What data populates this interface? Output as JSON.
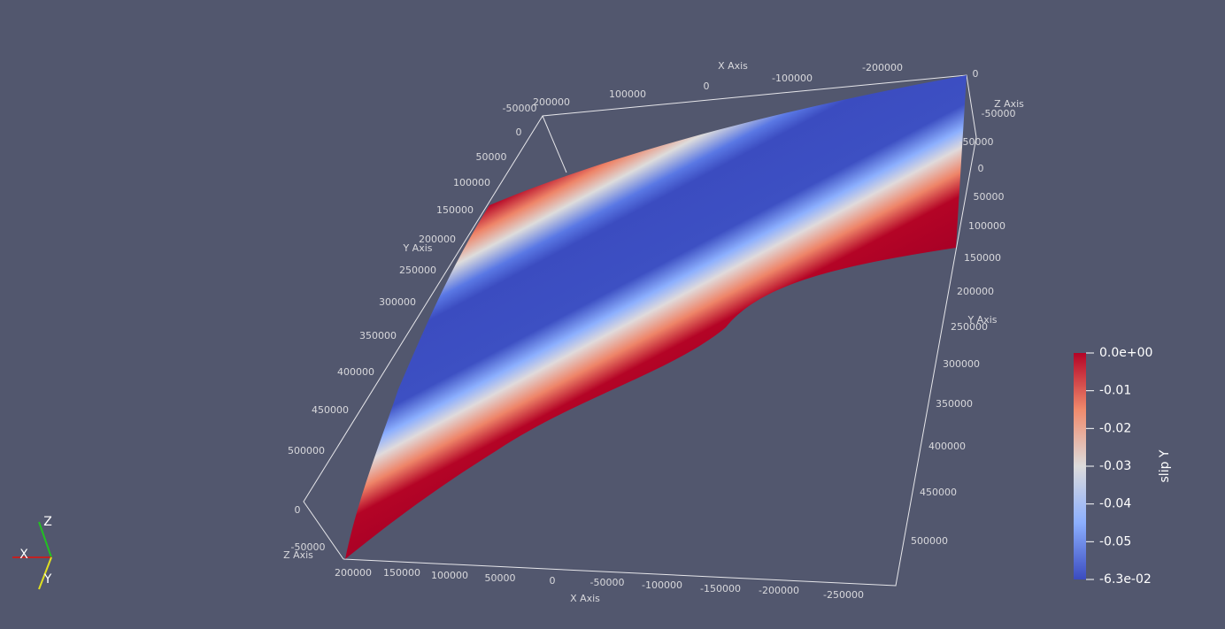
{
  "render_view": {
    "top_x_axis": {
      "title": "X Axis",
      "ticks": [
        "200000",
        "100000",
        "0",
        "-100000",
        "-200000"
      ]
    },
    "top_z_axis": {
      "title": "Z Axis",
      "ticks": [
        "0",
        "-50000"
      ]
    },
    "right_y_axis": {
      "title": "Y Axis",
      "ticks": [
        "-50000",
        "0",
        "50000",
        "100000",
        "150000",
        "200000",
        "250000",
        "300000",
        "350000",
        "400000",
        "450000",
        "500000"
      ]
    },
    "left_y_axis": {
      "title": "Y Axis",
      "ticks": [
        "-50000",
        "0",
        "50000",
        "100000",
        "150000",
        "200000",
        "250000",
        "300000",
        "350000",
        "400000",
        "450000",
        "500000"
      ]
    },
    "left_z_axis": {
      "title": "Z Axis",
      "ticks": [
        "0",
        "-50000"
      ]
    },
    "bottom_x_axis": {
      "title": "X Axis",
      "ticks": [
        "200000",
        "150000",
        "100000",
        "50000",
        "0",
        "-50000",
        "-100000",
        "-150000",
        "-200000",
        "-250000"
      ]
    },
    "color_bar": {
      "title": "slip Y",
      "labels": [
        "0.0e+00",
        "-0.01",
        "-0.02",
        "-0.03",
        "-0.04",
        "-0.05",
        "-6.3e-02"
      ]
    },
    "orientation_axes": {
      "x": "X",
      "y": "Y",
      "z": "Z"
    }
  }
}
